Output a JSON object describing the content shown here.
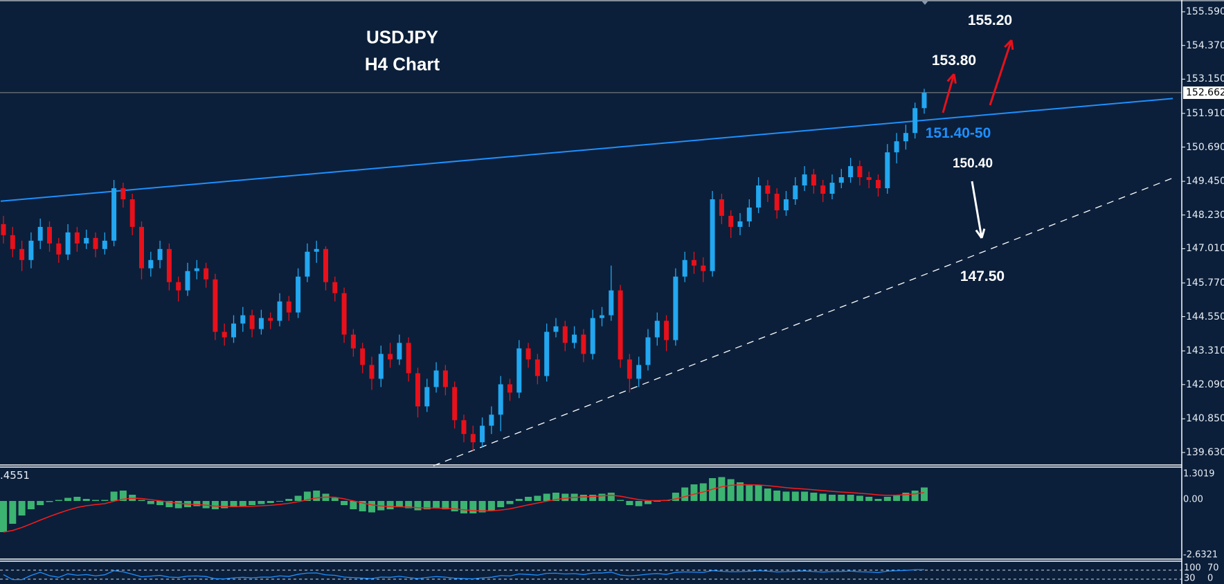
{
  "chart_data": {
    "type": "candlestick",
    "title": "USDJPY",
    "subtitle": "H4 Chart",
    "colors": {
      "background": "#0b1f3a",
      "up": "#22a7f0",
      "down": "#e8101a",
      "histogram": "#3cb371",
      "signal": "#ff1a1a",
      "rsi": "#1e90ff",
      "trendline": "#1e90ff",
      "support": "#ffffff",
      "arrow_up": "#e8101a",
      "arrow_down": "#ffffff"
    },
    "price_axis": {
      "range": [
        139.63,
        155.59
      ],
      "labels": [
        "155.590",
        "154.370",
        "153.150",
        "151.910",
        "150.690",
        "149.450",
        "148.230",
        "147.010",
        "145.770",
        "144.550",
        "143.310",
        "142.090",
        "140.850",
        "139.630"
      ]
    },
    "last_price": "152.662",
    "candles": [
      [
        147.9,
        148.2,
        147.2,
        147.5
      ],
      [
        147.5,
        147.8,
        146.7,
        147.0
      ],
      [
        147.0,
        147.3,
        146.2,
        146.6
      ],
      [
        146.6,
        147.6,
        146.3,
        147.3
      ],
      [
        147.3,
        148.1,
        147.0,
        147.8
      ],
      [
        147.8,
        148.0,
        146.9,
        147.2
      ],
      [
        147.2,
        147.4,
        146.5,
        146.8
      ],
      [
        146.8,
        147.9,
        146.6,
        147.6
      ],
      [
        147.6,
        147.8,
        146.9,
        147.2
      ],
      [
        147.2,
        147.7,
        147.0,
        147.4
      ],
      [
        147.4,
        147.6,
        146.7,
        147.0
      ],
      [
        147.0,
        147.6,
        146.8,
        147.3
      ],
      [
        147.3,
        149.5,
        147.1,
        149.2
      ],
      [
        149.2,
        149.4,
        148.5,
        148.8
      ],
      [
        148.8,
        149.0,
        147.5,
        147.8
      ],
      [
        147.8,
        148.0,
        145.9,
        146.3
      ],
      [
        146.3,
        146.9,
        146.0,
        146.6
      ],
      [
        146.6,
        147.3,
        146.3,
        147.0
      ],
      [
        147.0,
        147.2,
        145.5,
        145.8
      ],
      [
        145.8,
        146.0,
        145.1,
        145.5
      ],
      [
        145.5,
        146.5,
        145.3,
        146.2
      ],
      [
        146.2,
        146.6,
        145.9,
        146.3
      ],
      [
        146.3,
        146.5,
        145.6,
        145.9
      ],
      [
        145.9,
        146.1,
        143.7,
        144.0
      ],
      [
        144.0,
        144.3,
        143.5,
        143.8
      ],
      [
        143.8,
        144.6,
        143.6,
        144.3
      ],
      [
        144.3,
        144.9,
        144.0,
        144.6
      ],
      [
        144.6,
        144.8,
        143.8,
        144.1
      ],
      [
        144.1,
        144.8,
        143.9,
        144.5
      ],
      [
        144.5,
        144.7,
        144.1,
        144.4
      ],
      [
        144.4,
        145.4,
        144.2,
        145.1
      ],
      [
        145.1,
        145.3,
        144.4,
        144.7
      ],
      [
        144.7,
        146.3,
        144.5,
        146.0
      ],
      [
        146.0,
        147.2,
        145.8,
        146.9
      ],
      [
        146.9,
        147.3,
        146.5,
        147.0
      ],
      [
        147.0,
        147.1,
        145.5,
        145.8
      ],
      [
        145.8,
        146.0,
        145.1,
        145.4
      ],
      [
        145.4,
        145.6,
        143.6,
        143.9
      ],
      [
        143.9,
        144.1,
        143.1,
        143.4
      ],
      [
        143.4,
        143.6,
        142.5,
        142.8
      ],
      [
        142.8,
        143.1,
        141.9,
        142.3
      ],
      [
        142.3,
        143.5,
        142.0,
        143.2
      ],
      [
        143.2,
        143.6,
        142.7,
        143.0
      ],
      [
        143.0,
        143.9,
        142.8,
        143.6
      ],
      [
        143.6,
        143.8,
        142.2,
        142.5
      ],
      [
        142.5,
        142.7,
        140.9,
        141.3
      ],
      [
        141.3,
        142.3,
        141.1,
        142.0
      ],
      [
        142.0,
        142.9,
        141.8,
        142.6
      ],
      [
        142.6,
        142.8,
        141.7,
        142.0
      ],
      [
        142.0,
        142.2,
        140.5,
        140.8
      ],
      [
        140.8,
        141.0,
        140.0,
        140.3
      ],
      [
        140.3,
        140.6,
        139.7,
        140.0
      ],
      [
        140.0,
        140.9,
        139.8,
        140.6
      ],
      [
        140.6,
        141.3,
        140.3,
        141.0
      ],
      [
        141.0,
        142.4,
        140.4,
        142.1
      ],
      [
        142.1,
        142.3,
        141.5,
        141.8
      ],
      [
        141.8,
        143.7,
        141.6,
        143.4
      ],
      [
        143.4,
        143.6,
        142.7,
        143.0
      ],
      [
        143.0,
        143.2,
        142.1,
        142.4
      ],
      [
        142.4,
        144.3,
        142.2,
        144.0
      ],
      [
        144.0,
        144.5,
        143.8,
        144.2
      ],
      [
        144.2,
        144.4,
        143.3,
        143.6
      ],
      [
        143.6,
        144.2,
        143.4,
        143.9
      ],
      [
        143.9,
        144.1,
        142.9,
        143.2
      ],
      [
        143.2,
        144.8,
        143.0,
        144.5
      ],
      [
        144.5,
        144.9,
        144.2,
        144.6
      ],
      [
        144.6,
        146.4,
        144.4,
        145.5
      ],
      [
        145.5,
        145.7,
        142.7,
        143.0
      ],
      [
        143.0,
        143.2,
        141.8,
        142.3
      ],
      [
        142.3,
        143.1,
        142.0,
        142.8
      ],
      [
        142.8,
        144.1,
        142.6,
        143.8
      ],
      [
        143.8,
        144.7,
        143.5,
        144.4
      ],
      [
        144.4,
        144.6,
        143.3,
        143.7
      ],
      [
        143.7,
        146.3,
        143.5,
        146.0
      ],
      [
        146.0,
        146.9,
        145.8,
        146.6
      ],
      [
        146.6,
        146.9,
        146.1,
        146.4
      ],
      [
        146.4,
        146.7,
        145.8,
        146.2
      ],
      [
        146.2,
        149.1,
        146.0,
        148.8
      ],
      [
        148.8,
        149.0,
        147.9,
        148.2
      ],
      [
        148.2,
        148.4,
        147.4,
        147.8
      ],
      [
        147.8,
        148.3,
        147.5,
        148.0
      ],
      [
        148.0,
        148.8,
        147.8,
        148.5
      ],
      [
        148.5,
        149.6,
        148.3,
        149.3
      ],
      [
        149.3,
        149.5,
        148.7,
        149.0
      ],
      [
        149.0,
        149.2,
        148.1,
        148.4
      ],
      [
        148.4,
        149.1,
        148.2,
        148.8
      ],
      [
        148.8,
        149.6,
        148.6,
        149.3
      ],
      [
        149.3,
        150.0,
        149.1,
        149.7
      ],
      [
        149.7,
        149.9,
        149.0,
        149.3
      ],
      [
        149.3,
        149.5,
        148.7,
        149.0
      ],
      [
        149.0,
        149.7,
        148.8,
        149.4
      ],
      [
        149.4,
        149.9,
        149.2,
        149.6
      ],
      [
        149.6,
        150.3,
        149.4,
        150.0
      ],
      [
        150.0,
        150.2,
        149.3,
        149.6
      ],
      [
        149.6,
        149.8,
        149.2,
        149.5
      ],
      [
        149.5,
        149.7,
        148.9,
        149.2
      ],
      [
        149.2,
        150.8,
        149.0,
        150.5
      ],
      [
        150.5,
        151.2,
        150.1,
        150.9
      ],
      [
        150.9,
        151.5,
        150.6,
        151.2
      ],
      [
        151.2,
        152.3,
        151.0,
        152.1
      ],
      [
        152.1,
        152.8,
        151.9,
        152.66
      ]
    ],
    "trendlines": [
      {
        "style": "solid",
        "color": "#1e90ff",
        "from": [
          -0.3,
          148.73
        ],
        "to": [
          127,
          152.45
        ]
      },
      {
        "style": "dashed",
        "color": "#ffffff",
        "from": [
          46.7,
          139.15
        ],
        "to": [
          127,
          149.57
        ]
      }
    ],
    "annotations": {
      "resistance": "151.40-50",
      "target_1": "153.80",
      "target_2": "155.20",
      "pullback_1": "150.40",
      "pullback_2": "147.50"
    },
    "macd": {
      "current_value": ".4551",
      "axis_labels": [
        "1.3019",
        "0.00",
        "-2.6321"
      ],
      "range": [
        -2.6321,
        1.3019
      ],
      "histogram": [
        -1.5,
        -1.1,
        -0.7,
        -0.4,
        -0.2,
        -0.05,
        0.05,
        0.15,
        0.2,
        0.1,
        0.05,
        0.05,
        0.45,
        0.5,
        0.3,
        0.05,
        -0.15,
        -0.2,
        -0.3,
        -0.35,
        -0.3,
        -0.25,
        -0.35,
        -0.4,
        -0.35,
        -0.3,
        -0.25,
        -0.2,
        -0.15,
        -0.1,
        0.0,
        0.1,
        0.25,
        0.45,
        0.5,
        0.35,
        0.15,
        -0.2,
        -0.4,
        -0.5,
        -0.55,
        -0.45,
        -0.4,
        -0.3,
        -0.35,
        -0.45,
        -0.4,
        -0.35,
        -0.4,
        -0.5,
        -0.6,
        -0.6,
        -0.55,
        -0.45,
        -0.3,
        -0.15,
        0.1,
        0.2,
        0.25,
        0.35,
        0.4,
        0.35,
        0.35,
        0.3,
        0.3,
        0.35,
        0.4,
        0.05,
        -0.2,
        -0.25,
        -0.15,
        0.0,
        0.05,
        0.4,
        0.65,
        0.8,
        0.85,
        1.1,
        1.15,
        1.05,
        0.9,
        0.75,
        0.75,
        0.6,
        0.5,
        0.45,
        0.45,
        0.45,
        0.4,
        0.35,
        0.3,
        0.3,
        0.3,
        0.25,
        0.2,
        0.1,
        0.2,
        0.3,
        0.4,
        0.5,
        0.65
      ]
    },
    "rsi": {
      "levels": [
        70,
        30
      ],
      "axis_labels": [
        "100",
        "70",
        "30",
        "0"
      ]
    }
  }
}
